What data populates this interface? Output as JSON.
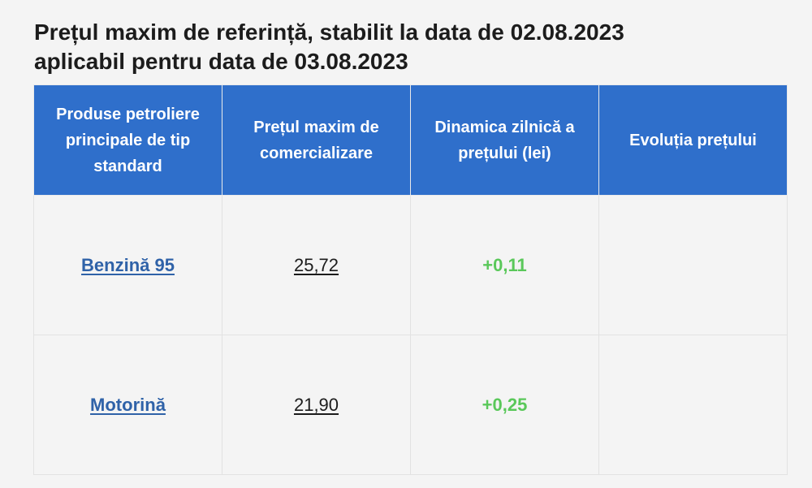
{
  "title": {
    "line1": "Prețul maxim de referință, stabilit la data de 02.08.2023",
    "line2": "aplicabil pentru data de 03.08.2023"
  },
  "table": {
    "headers": {
      "product_line1": "Produse petroliere",
      "product_line2": "principale de tip",
      "product_line3": "standard",
      "price_line1": "Prețul maxim de",
      "price_line2": "comercializare",
      "dynamic_line1": "Dinamica zilnică a",
      "dynamic_line2": "prețului (lei)",
      "evolution": "Evoluția prețului"
    },
    "rows": [
      {
        "product": "Benzină 95",
        "price": "25,72",
        "dynamic": "+0,11",
        "evolution": ""
      },
      {
        "product": "Motorină",
        "price": "21,90",
        "dynamic": "+0,25",
        "evolution": ""
      }
    ]
  },
  "colors": {
    "header_bg": "#2f6fcb",
    "link": "#2f62a8",
    "positive": "#5ac85a"
  }
}
